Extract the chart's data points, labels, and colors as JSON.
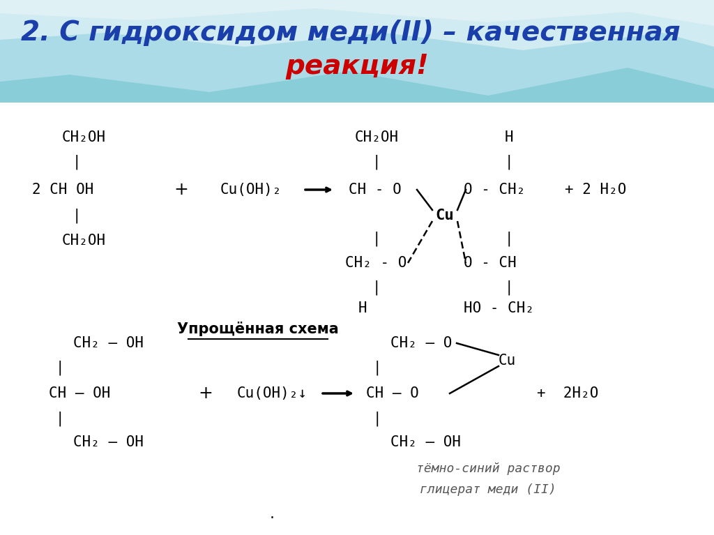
{
  "title_part1": "2. С гидроксидом меди(II) – качественная",
  "title_part2": "реакция!",
  "title_color_blue": "#1a3faa",
  "title_color_red": "#cc0000",
  "section_label": "Упрощённая схема",
  "note_line1": "тёмно-синий раствор",
  "note_line2": "глицерат меди (II)",
  "bg_top": "#a8dde8",
  "bg_mid": "#c8ecf4",
  "bg_wave": "#e0f4f8"
}
